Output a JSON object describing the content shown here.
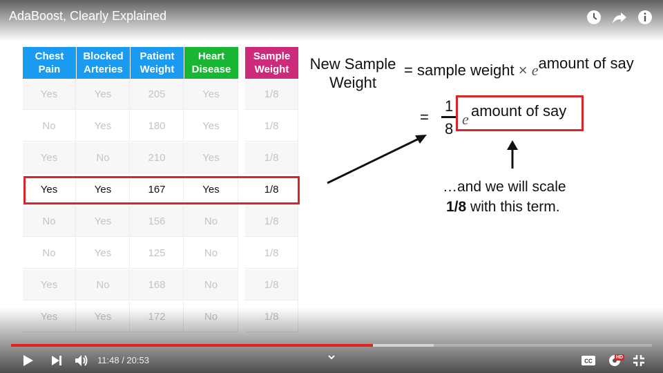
{
  "player": {
    "title": "AdaBoost, Clearly Explained",
    "time_current": "11:48",
    "time_separator": " / ",
    "time_total": "20:53",
    "progress_played_fraction": 0.565,
    "progress_buffered_fraction": 0.66,
    "accent_color": "#e32222",
    "icons": [
      "watch-later-icon",
      "share-icon",
      "info-icon",
      "play-icon",
      "next-icon",
      "volume-icon",
      "chevron-down-icon",
      "captions-icon",
      "settings-icon",
      "fullscreen-icon"
    ],
    "hd_badge": "HD"
  },
  "table": {
    "headers": [
      {
        "label_line1": "Chest",
        "label_line2": "Pain",
        "color": "#1a9bf0"
      },
      {
        "label_line1": "Blocked",
        "label_line2": "Arteries",
        "color": "#1a9bf0"
      },
      {
        "label_line1": "Patient",
        "label_line2": "Weight",
        "color": "#1a9bf0"
      },
      {
        "label_line1": "Heart",
        "label_line2": "Disease",
        "color": "#19b634"
      },
      {
        "label_line1": "Sample",
        "label_line2": "Weight",
        "color": "#cc2b7c"
      }
    ],
    "rows": [
      [
        "Yes",
        "Yes",
        "205",
        "Yes",
        "1/8"
      ],
      [
        "No",
        "Yes",
        "180",
        "Yes",
        "1/8"
      ],
      [
        "Yes",
        "No",
        "210",
        "Yes",
        "1/8"
      ],
      [
        "Yes",
        "Yes",
        "167",
        "Yes",
        "1/8"
      ],
      [
        "No",
        "Yes",
        "156",
        "No",
        "1/8"
      ],
      [
        "No",
        "Yes",
        "125",
        "No",
        "1/8"
      ],
      [
        "Yes",
        "No",
        "168",
        "No",
        "1/8"
      ],
      [
        "Yes",
        "Yes",
        "172",
        "No",
        "1/8"
      ]
    ],
    "highlighted_row": 3
  },
  "formula": {
    "lhs_line1": "New Sample",
    "lhs_line2": "Weight",
    "eq": "=",
    "rhs_text": "sample weight",
    "times": "×",
    "e": "e",
    "exponent": "amount of say",
    "line2_eq": "=",
    "frac_num": "1",
    "frac_den": "8",
    "line2_e": "e",
    "line2_exponent": "amount of say",
    "note_line1": "…and we will scale",
    "note_bold": "1/8",
    "note_rest": " with this term."
  }
}
